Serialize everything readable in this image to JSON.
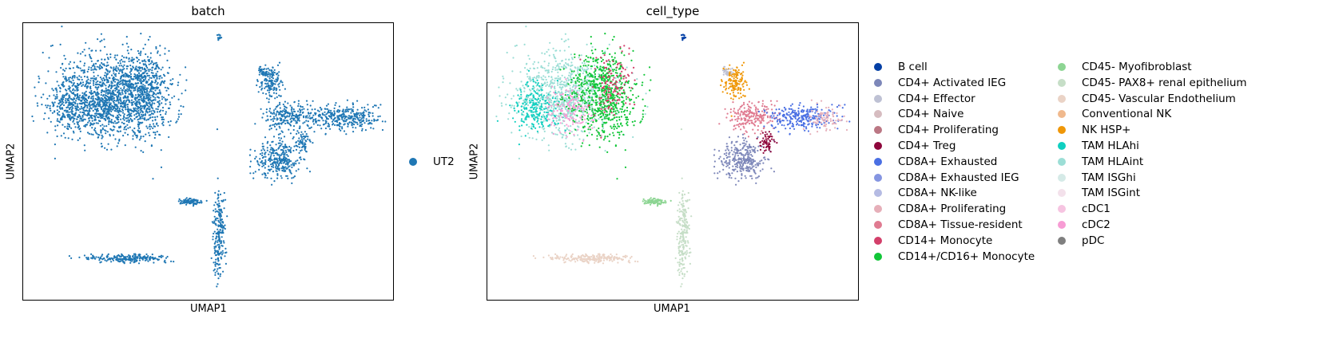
{
  "chart_data": [
    {
      "type": "scatter",
      "title": "batch",
      "xlabel": "UMAP1",
      "ylabel": "UMAP2",
      "grid": false,
      "legend_position": "right",
      "categories": [
        {
          "name": "UT2",
          "color": "#1f77b4"
        }
      ]
    },
    {
      "type": "scatter",
      "title": "cell_type",
      "xlabel": "UMAP1",
      "ylabel": "UMAP2",
      "grid": false,
      "legend_position": "right",
      "categories": [
        {
          "name": "B cell",
          "color": "#023fa5"
        },
        {
          "name": "CD4+ Activated IEG",
          "color": "#7d87b9"
        },
        {
          "name": "CD4+ Effector",
          "color": "#bec1d4"
        },
        {
          "name": "CD4+ Naive",
          "color": "#d6bcc0"
        },
        {
          "name": "CD4+ Proliferating",
          "color": "#bb7784"
        },
        {
          "name": "CD4+ Treg",
          "color": "#8e063b"
        },
        {
          "name": "CD8A+ Exhausted",
          "color": "#4a6fe3"
        },
        {
          "name": "CD8A+ Exhausted IEG",
          "color": "#8595e1"
        },
        {
          "name": "CD8A+ NK-like",
          "color": "#b5bbe3"
        },
        {
          "name": "CD8A+ Proliferating",
          "color": "#e6afb9"
        },
        {
          "name": "CD8A+ Tissue-resident",
          "color": "#e07b91"
        },
        {
          "name": "CD14+ Monocyte",
          "color": "#d33f6a"
        },
        {
          "name": "CD14+/CD16+ Monocyte",
          "color": "#11c638"
        },
        {
          "name": "CD45- Myofibroblast",
          "color": "#8dd593"
        },
        {
          "name": "CD45- PAX8+ renal epithelium",
          "color": "#c6dec7"
        },
        {
          "name": "CD45- Vascular Endothelium",
          "color": "#ead3c6"
        },
        {
          "name": "Conventional NK",
          "color": "#f0b98d"
        },
        {
          "name": "NK HSP+",
          "color": "#ef9708"
        },
        {
          "name": "TAM HLAhi",
          "color": "#0fcfc0"
        },
        {
          "name": "TAM HLAint",
          "color": "#9cded6"
        },
        {
          "name": "TAM ISGhi",
          "color": "#d5eae7"
        },
        {
          "name": "TAM ISGint",
          "color": "#f3e1eb"
        },
        {
          "name": "cDC1",
          "color": "#f6c4e1"
        },
        {
          "name": "cDC2",
          "color": "#f79cd4"
        },
        {
          "name": "pDC",
          "color": "#7f7f7f"
        }
      ]
    }
  ]
}
